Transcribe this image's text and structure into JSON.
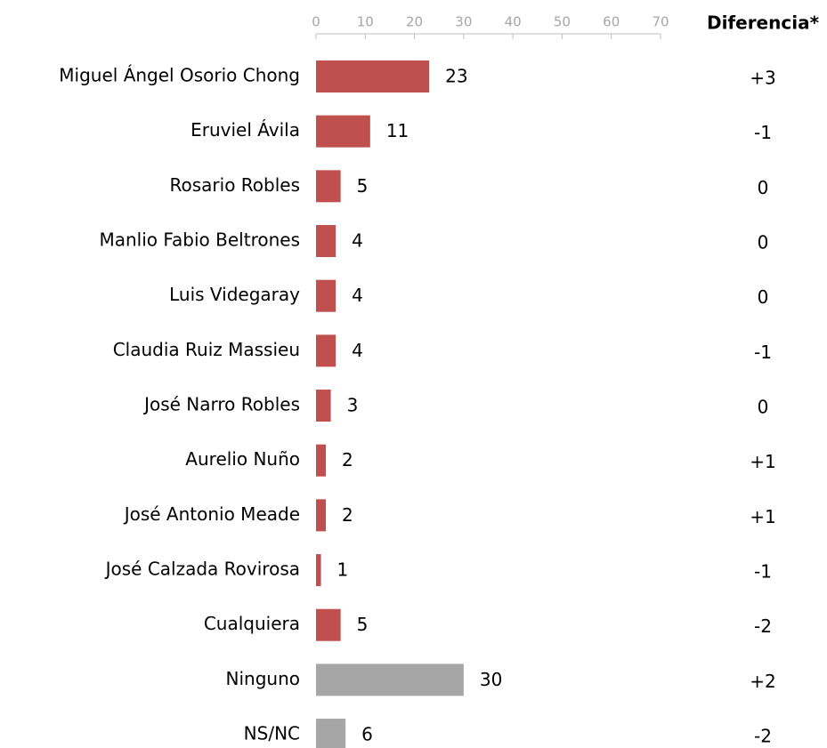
{
  "chart_data": {
    "type": "bar",
    "orientation": "horizontal",
    "categories": [
      "Miguel Ángel Osorio Chong",
      "Eruviel Ávila",
      "Rosario Robles",
      "Manlio Fabio Beltrones",
      "Luis Videgaray",
      "Claudia Ruiz Massieu",
      "José Narro Robles",
      "Aurelio Nuño",
      "José Antonio Meade",
      "José Calzada Rovirosa",
      "Cualquiera",
      "Ninguno",
      "NS/NC"
    ],
    "values": [
      23,
      11,
      5,
      4,
      4,
      4,
      3,
      2,
      2,
      1,
      5,
      30,
      6
    ],
    "colors": [
      "#c0504d",
      "#c0504d",
      "#c0504d",
      "#c0504d",
      "#c0504d",
      "#c0504d",
      "#c0504d",
      "#c0504d",
      "#c0504d",
      "#c0504d",
      "#c0504d",
      "#a6a6a6",
      "#a6a6a6"
    ],
    "xlim": [
      0,
      70
    ],
    "xticks": [
      0,
      10,
      20,
      30,
      40,
      50,
      60,
      70
    ],
    "grid": false,
    "difference": {
      "title": "Diferencia*",
      "values": [
        3,
        -1,
        0,
        0,
        0,
        -1,
        0,
        1,
        1,
        -1,
        -2,
        2,
        -2
      ],
      "value_labels": [
        "+3",
        "-1",
        "0",
        "0",
        "0",
        "-1",
        "0",
        "+1",
        "+1",
        "-1",
        "-2",
        "+2",
        "-2"
      ]
    }
  }
}
